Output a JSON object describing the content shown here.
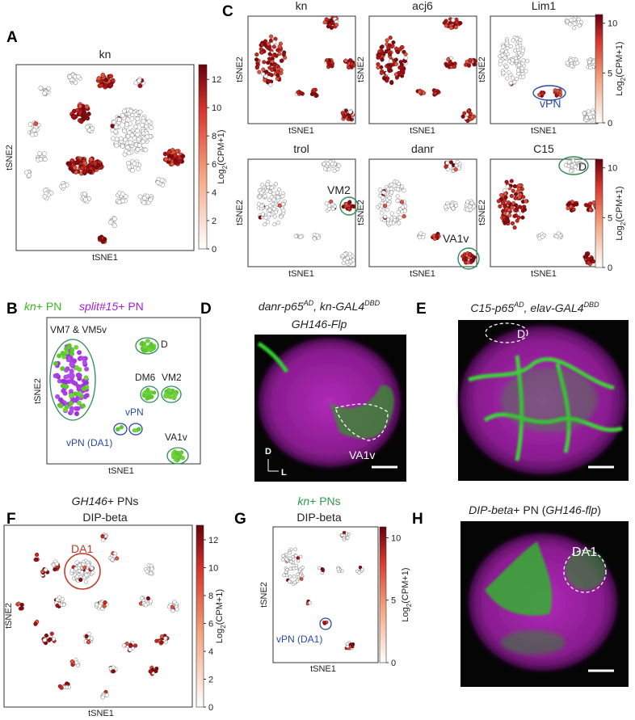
{
  "panels": {
    "A": {
      "label": "A",
      "title": "kn",
      "x_label": "tSNE1",
      "y_label": "tSNE2",
      "colorbar": {
        "ticks": [
          0,
          2,
          4,
          6,
          8,
          10,
          12
        ],
        "label": {
          "base": "Log",
          "sub": "2",
          "rest": "(CPM+1)"
        }
      }
    },
    "C": {
      "label": "C",
      "plots": [
        {
          "title": "kn"
        },
        {
          "title": "acj6"
        },
        {
          "title": "Lim1",
          "annotation": "vPN"
        },
        {
          "title": "trol",
          "annotation": "VM2"
        },
        {
          "title": "danr",
          "annotation": "VA1v"
        },
        {
          "title": "C15",
          "annotation": "D"
        }
      ],
      "x_label": "tSNE1",
      "y_label": "tSNE2",
      "colorbar": {
        "ticks": [
          0,
          5,
          10
        ],
        "label": {
          "base": "Log",
          "sub": "2",
          "rest": "(CPM+1)"
        }
      }
    },
    "B": {
      "label": "B",
      "legend": [
        {
          "name": "kn",
          "rest": "+ PN"
        },
        {
          "name": "split#15",
          "rest": "+ PN"
        }
      ],
      "annotations": [
        "VM7 & VM5v",
        "D",
        "DM6",
        "VM2",
        "vPN",
        "vPN (DA1)",
        "VA1v"
      ],
      "x_label": "tSNE1",
      "y_label": "tSNE2"
    },
    "D": {
      "label": "D",
      "line1": {
        "a": "danr-p65",
        "a_sup": "AD",
        "b": ", kn-GAL4",
        "b_sup": "DBD"
      },
      "line2": "GH146-Flp",
      "region": "VA1v",
      "axis_d": "D",
      "axis_l": "L"
    },
    "E": {
      "label": "E",
      "line1": {
        "a": "C15-p65",
        "a_sup": "AD",
        "b": ", elav-GAL4",
        "b_sup": "DBD"
      },
      "region": "D"
    },
    "F": {
      "label": "F",
      "line1": {
        "a": "GH146",
        "b": "+ PNs"
      },
      "line2": "DIP-beta",
      "annotation": "DA1",
      "x_label": "tSNE1",
      "y_label": "tSNE2",
      "colorbar": {
        "ticks": [
          0,
          2,
          4,
          6,
          8,
          10,
          12
        ],
        "label": {
          "base": "Log",
          "sub": "2",
          "rest": "(CPM+1)"
        }
      }
    },
    "G": {
      "label": "G",
      "line1": {
        "a": "kn",
        "b": "+ PNs"
      },
      "line2": "DIP-beta",
      "annotation": "vPN (DA1)",
      "x_label": "tSNE1",
      "y_label": "tSNE2",
      "colorbar": {
        "ticks": [
          0,
          5,
          10
        ],
        "label": {
          "base": "Log",
          "sub": "2",
          "rest": "(CPM+1)"
        }
      }
    },
    "H": {
      "label": "H",
      "line1": {
        "a": "DIP-beta",
        "b": "+ PN (",
        "c": "GH146-flp",
        "d": ")"
      },
      "region": "DA1"
    }
  }
}
